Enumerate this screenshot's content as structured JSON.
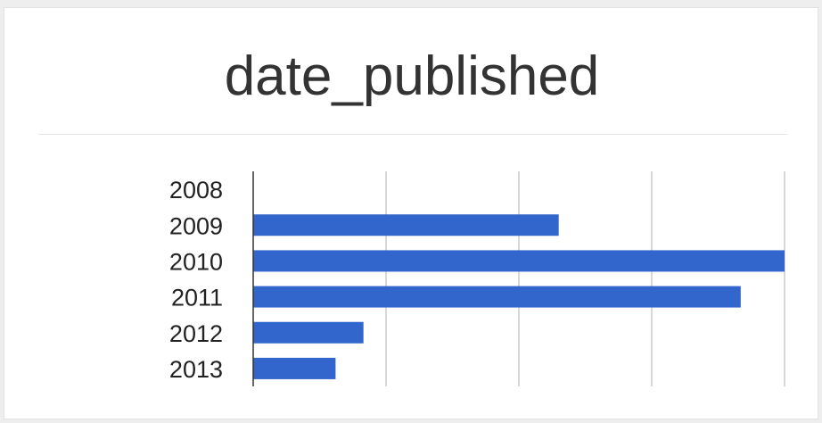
{
  "widget": {
    "title": "date_published"
  },
  "chart_data": {
    "type": "bar",
    "orientation": "horizontal",
    "title": "date_published",
    "xlabel": "",
    "ylabel": "",
    "categories": [
      "2008",
      "2009",
      "2010",
      "2011",
      "2012",
      "2013"
    ],
    "values": [
      0,
      23,
      40,
      36.7,
      8.3,
      6.2
    ],
    "xlim": [
      0,
      40
    ],
    "gridlines": [
      10,
      20,
      30,
      40
    ],
    "grid": true,
    "legend": "none",
    "bar_color": "#3366cc"
  }
}
